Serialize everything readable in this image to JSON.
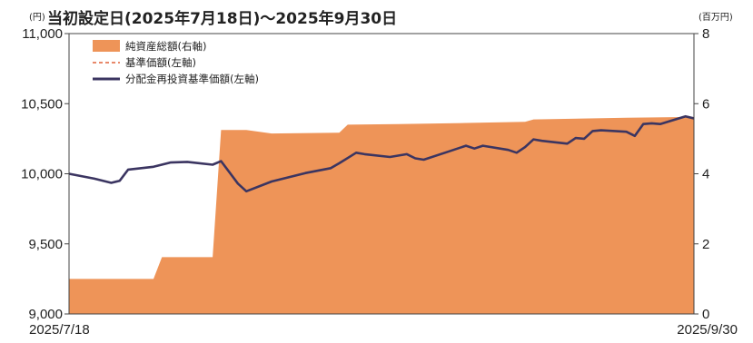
{
  "title": "当初設定日(2025年7月18日)～2025年9月30日",
  "units": {
    "left": "(円)",
    "right": "(百万円)"
  },
  "chart_data": {
    "type": "area",
    "title": "当初設定日(2025年7月18日)～2025年9月30日",
    "y_left": {
      "unit": "(円)",
      "ylim": [
        9000,
        11000
      ],
      "ticks": [
        9000,
        9500,
        10000,
        10500,
        11000
      ],
      "tick_labels": [
        "9,000",
        "9,500",
        "10,000",
        "10,500",
        "11,000"
      ]
    },
    "y_right": {
      "unit": "(百万円)",
      "ylim": [
        0,
        8
      ],
      "ticks": [
        0,
        2,
        4,
        6,
        8
      ],
      "tick_labels": [
        "0",
        "2",
        "4",
        "6",
        "8"
      ]
    },
    "x_labels": {
      "start": "2025/7/18",
      "end": "2025/9/30"
    },
    "x_domain": [
      "2025-07-18",
      "2025-09-30"
    ],
    "legend": [
      {
        "label": "純資産総額(右軸)",
        "color": "#ee9458",
        "kind": "area"
      },
      {
        "label": "基準価額(左軸)",
        "color": "#e0623a",
        "kind": "dashed"
      },
      {
        "label": "分配金再投資基準価額(左軸)",
        "color": "#3b3561",
        "kind": "line"
      }
    ],
    "legend_position": "top-left",
    "grid": false,
    "series": [
      {
        "name": "純資産総額(右軸)",
        "axis": "right",
        "type": "area",
        "color": "#ee9458",
        "points": [
          [
            "2025-07-18",
            1.0
          ],
          [
            "2025-07-28",
            1.0
          ],
          [
            "2025-07-29",
            1.62
          ],
          [
            "2025-08-04",
            1.62
          ],
          [
            "2025-08-05",
            5.25
          ],
          [
            "2025-08-08",
            5.25
          ],
          [
            "2025-08-11",
            5.15
          ],
          [
            "2025-08-19",
            5.17
          ],
          [
            "2025-08-20",
            5.4
          ],
          [
            "2025-08-26",
            5.42
          ],
          [
            "2025-09-03",
            5.45
          ],
          [
            "2025-09-10",
            5.48
          ],
          [
            "2025-09-11",
            5.55
          ],
          [
            "2025-09-22",
            5.6
          ],
          [
            "2025-09-30",
            5.62
          ]
        ]
      },
      {
        "name": "基準価額(左軸)",
        "axis": "left",
        "type": "line",
        "color": "#e0623a",
        "dashed": true,
        "points": [
          [
            "2025-07-18",
            10000
          ],
          [
            "2025-07-21",
            9965
          ],
          [
            "2025-07-23",
            9935
          ],
          [
            "2025-07-24",
            9950
          ],
          [
            "2025-07-25",
            10030
          ],
          [
            "2025-07-28",
            10050
          ],
          [
            "2025-07-30",
            10080
          ],
          [
            "2025-08-01",
            10085
          ],
          [
            "2025-08-04",
            10065
          ],
          [
            "2025-08-05",
            10090
          ],
          [
            "2025-08-07",
            9930
          ],
          [
            "2025-08-08",
            9875
          ],
          [
            "2025-08-11",
            9945
          ],
          [
            "2025-08-13",
            9975
          ],
          [
            "2025-08-15",
            10005
          ],
          [
            "2025-08-18",
            10040
          ],
          [
            "2025-08-19",
            10075
          ],
          [
            "2025-08-21",
            10150
          ],
          [
            "2025-08-22",
            10140
          ],
          [
            "2025-08-25",
            10120
          ],
          [
            "2025-08-27",
            10140
          ],
          [
            "2025-08-28",
            10110
          ],
          [
            "2025-08-29",
            10100
          ],
          [
            "2025-09-01",
            10160
          ],
          [
            "2025-09-03",
            10200
          ],
          [
            "2025-09-04",
            10180
          ],
          [
            "2025-09-05",
            10200
          ],
          [
            "2025-09-08",
            10170
          ],
          [
            "2025-09-09",
            10150
          ],
          [
            "2025-09-10",
            10190
          ],
          [
            "2025-09-11",
            10245
          ],
          [
            "2025-09-12",
            10235
          ],
          [
            "2025-09-15",
            10215
          ],
          [
            "2025-09-16",
            10255
          ],
          [
            "2025-09-17",
            10250
          ],
          [
            "2025-09-18",
            10305
          ],
          [
            "2025-09-19",
            10310
          ],
          [
            "2025-09-22",
            10300
          ],
          [
            "2025-09-23",
            10270
          ],
          [
            "2025-09-24",
            10355
          ],
          [
            "2025-09-25",
            10360
          ],
          [
            "2025-09-26",
            10355
          ],
          [
            "2025-09-29",
            10410
          ],
          [
            "2025-09-30",
            10395
          ]
        ]
      },
      {
        "name": "分配金再投資基準価額(左軸)",
        "axis": "left",
        "type": "line",
        "color": "#3b3561",
        "points": [
          [
            "2025-07-18",
            10000
          ],
          [
            "2025-07-21",
            9965
          ],
          [
            "2025-07-23",
            9935
          ],
          [
            "2025-07-24",
            9950
          ],
          [
            "2025-07-25",
            10030
          ],
          [
            "2025-07-28",
            10050
          ],
          [
            "2025-07-30",
            10080
          ],
          [
            "2025-08-01",
            10085
          ],
          [
            "2025-08-04",
            10065
          ],
          [
            "2025-08-05",
            10090
          ],
          [
            "2025-08-07",
            9930
          ],
          [
            "2025-08-08",
            9875
          ],
          [
            "2025-08-11",
            9945
          ],
          [
            "2025-08-13",
            9975
          ],
          [
            "2025-08-15",
            10005
          ],
          [
            "2025-08-18",
            10040
          ],
          [
            "2025-08-19",
            10075
          ],
          [
            "2025-08-21",
            10150
          ],
          [
            "2025-08-22",
            10140
          ],
          [
            "2025-08-25",
            10120
          ],
          [
            "2025-08-27",
            10140
          ],
          [
            "2025-08-28",
            10110
          ],
          [
            "2025-08-29",
            10100
          ],
          [
            "2025-09-01",
            10160
          ],
          [
            "2025-09-03",
            10200
          ],
          [
            "2025-09-04",
            10180
          ],
          [
            "2025-09-05",
            10200
          ],
          [
            "2025-09-08",
            10170
          ],
          [
            "2025-09-09",
            10150
          ],
          [
            "2025-09-10",
            10190
          ],
          [
            "2025-09-11",
            10245
          ],
          [
            "2025-09-12",
            10235
          ],
          [
            "2025-09-15",
            10215
          ],
          [
            "2025-09-16",
            10255
          ],
          [
            "2025-09-17",
            10250
          ],
          [
            "2025-09-18",
            10305
          ],
          [
            "2025-09-19",
            10310
          ],
          [
            "2025-09-22",
            10300
          ],
          [
            "2025-09-23",
            10270
          ],
          [
            "2025-09-24",
            10355
          ],
          [
            "2025-09-25",
            10360
          ],
          [
            "2025-09-26",
            10355
          ],
          [
            "2025-09-29",
            10410
          ],
          [
            "2025-09-30",
            10395
          ]
        ]
      }
    ]
  }
}
